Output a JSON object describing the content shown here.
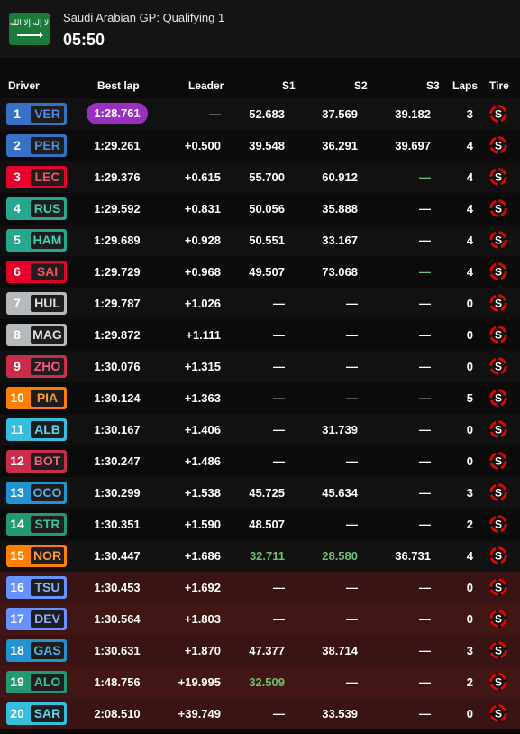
{
  "header": {
    "flag_text": "لا إله إلا الله",
    "session_title": "Saudi Arabian GP: Qualifying 1",
    "clock": "05:50"
  },
  "columns": {
    "driver": "Driver",
    "best_lap": "Best lap",
    "leader": "Leader",
    "s1": "S1",
    "s2": "S2",
    "s3": "S3",
    "laps": "Laps",
    "tire": "Tire"
  },
  "tire_compound": "S",
  "colors": {
    "fastest_purple": "#9b2fc2",
    "personal_green": "#6fbf73",
    "eliminated_bg": "#3a1414",
    "soft_tire_red": "#e10600"
  },
  "rows": [
    {
      "pos": "1",
      "code": "VER",
      "team_color": "#3671c6",
      "code_color": "#4f8de8",
      "best_lap": "1:28.761",
      "leader": "—",
      "s1": "52.683",
      "s2": "37.569",
      "s3": "39.182",
      "laps": "3",
      "fastest": true
    },
    {
      "pos": "2",
      "code": "PER",
      "team_color": "#3671c6",
      "code_color": "#4f8de8",
      "best_lap": "1:29.261",
      "leader": "+0.500",
      "s1": "39.548",
      "s2": "36.291",
      "s3": "39.697",
      "laps": "4"
    },
    {
      "pos": "3",
      "code": "LEC",
      "team_color": "#e8002d",
      "code_color": "#ff4d5e",
      "best_lap": "1:29.376",
      "leader": "+0.615",
      "s1": "55.700",
      "s2": "60.912",
      "s3": "—",
      "s3_green": true,
      "laps": "4"
    },
    {
      "pos": "4",
      "code": "RUS",
      "team_color": "#27a78f",
      "code_color": "#3cd1b4",
      "best_lap": "1:29.592",
      "leader": "+0.831",
      "s1": "50.056",
      "s2": "35.888",
      "s3": "—",
      "laps": "4"
    },
    {
      "pos": "5",
      "code": "HAM",
      "team_color": "#27a78f",
      "code_color": "#3cd1b4",
      "best_lap": "1:29.689",
      "leader": "+0.928",
      "s1": "50.551",
      "s2": "33.167",
      "s3": "—",
      "laps": "4"
    },
    {
      "pos": "6",
      "code": "SAI",
      "team_color": "#e8002d",
      "code_color": "#ff4d5e",
      "best_lap": "1:29.729",
      "leader": "+0.968",
      "s1": "49.507",
      "s2": "73.068",
      "s3": "—",
      "s3_green": true,
      "laps": "4"
    },
    {
      "pos": "7",
      "code": "HUL",
      "team_color": "#b6babd",
      "code_color": "#e0e0e0",
      "best_lap": "1:29.787",
      "leader": "+1.026",
      "s1": "—",
      "s2": "—",
      "s3": "—",
      "laps": "0"
    },
    {
      "pos": "8",
      "code": "MAG",
      "team_color": "#b6babd",
      "code_color": "#e0e0e0",
      "best_lap": "1:29.872",
      "leader": "+1.111",
      "s1": "—",
      "s2": "—",
      "s3": "—",
      "laps": "0"
    },
    {
      "pos": "9",
      "code": "ZHO",
      "team_color": "#c92d4b",
      "code_color": "#ff5a7a",
      "best_lap": "1:30.076",
      "leader": "+1.315",
      "s1": "—",
      "s2": "—",
      "s3": "—",
      "laps": "0"
    },
    {
      "pos": "10",
      "code": "PIA",
      "team_color": "#ff8000",
      "code_color": "#ff9a33",
      "best_lap": "1:30.124",
      "leader": "+1.363",
      "s1": "—",
      "s2": "—",
      "s3": "—",
      "laps": "5"
    },
    {
      "pos": "11",
      "code": "ALB",
      "team_color": "#37bedd",
      "code_color": "#5dd7f2",
      "best_lap": "1:30.167",
      "leader": "+1.406",
      "s1": "—",
      "s2": "31.739",
      "s3": "—",
      "laps": "0"
    },
    {
      "pos": "12",
      "code": "BOT",
      "team_color": "#c92d4b",
      "code_color": "#ff5a7a",
      "best_lap": "1:30.247",
      "leader": "+1.486",
      "s1": "—",
      "s2": "—",
      "s3": "—",
      "laps": "0"
    },
    {
      "pos": "13",
      "code": "OCO",
      "team_color": "#2293d1",
      "code_color": "#4fb4ec",
      "best_lap": "1:30.299",
      "leader": "+1.538",
      "s1": "45.725",
      "s2": "45.634",
      "s3": "—",
      "laps": "3"
    },
    {
      "pos": "14",
      "code": "STR",
      "team_color": "#229971",
      "code_color": "#37c795",
      "best_lap": "1:30.351",
      "leader": "+1.590",
      "s1": "48.507",
      "s2": "—",
      "s3": "—",
      "laps": "2"
    },
    {
      "pos": "15",
      "code": "NOR",
      "team_color": "#ff8000",
      "code_color": "#ff9a33",
      "best_lap": "1:30.447",
      "leader": "+1.686",
      "s1": "32.711",
      "s1_green": true,
      "s2": "28.580",
      "s2_green": true,
      "s3": "36.731",
      "laps": "4"
    },
    {
      "pos": "16",
      "code": "TSU",
      "team_color": "#6692ff",
      "code_color": "#8fb0ff",
      "best_lap": "1:30.453",
      "leader": "+1.692",
      "s1": "—",
      "s2": "—",
      "s3": "—",
      "laps": "0",
      "out": true
    },
    {
      "pos": "17",
      "code": "DEV",
      "team_color": "#6692ff",
      "code_color": "#8fb0ff",
      "best_lap": "1:30.564",
      "leader": "+1.803",
      "s1": "—",
      "s2": "—",
      "s3": "—",
      "laps": "0",
      "out": true
    },
    {
      "pos": "18",
      "code": "GAS",
      "team_color": "#2293d1",
      "code_color": "#4fb4ec",
      "best_lap": "1:30.631",
      "leader": "+1.870",
      "s1": "47.377",
      "s2": "38.714",
      "s3": "—",
      "laps": "3",
      "out": true
    },
    {
      "pos": "19",
      "code": "ALO",
      "team_color": "#229971",
      "code_color": "#37c795",
      "best_lap": "1:48.756",
      "leader": "+19.995",
      "s1": "32.509",
      "s1_green": true,
      "s2": "—",
      "s3": "—",
      "laps": "2",
      "out": true
    },
    {
      "pos": "20",
      "code": "SAR",
      "team_color": "#37bedd",
      "code_color": "#5dd7f2",
      "best_lap": "2:08.510",
      "leader": "+39.749",
      "s1": "—",
      "s2": "33.539",
      "s3": "—",
      "laps": "0",
      "out": true
    }
  ]
}
